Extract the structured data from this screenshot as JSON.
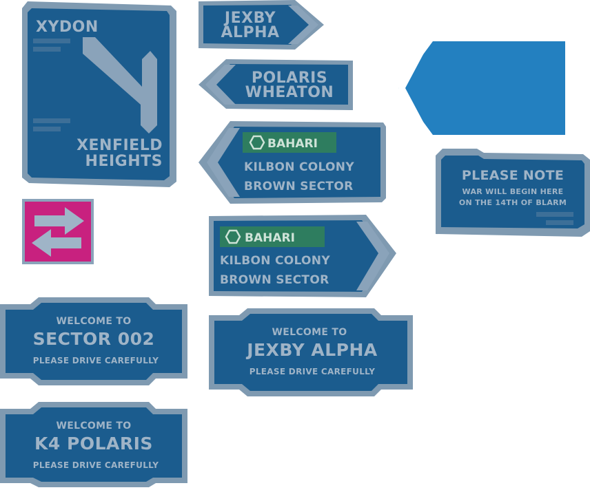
{
  "colors": {
    "sign_fill": "#1b5c8e",
    "sign_border": "#7f9ab1",
    "text": "#9fb4c7",
    "badge": "#2e7d5f",
    "magenta": "#c8217f",
    "bright_blue": "#2380c0"
  },
  "signs": {
    "xydon": {
      "top": "XYDON",
      "bottom_line1": "XENFIELD",
      "bottom_line2": "HEIGHTS"
    },
    "jexby_arrow": {
      "line1": "JEXBY",
      "line2": "ALPHA"
    },
    "polaris_arrow": {
      "line1": "POLARIS",
      "line2": "WHEATON"
    },
    "bahari_left": {
      "badge": "BAHARI",
      "line1": "KILBON COLONY",
      "line2": "BROWN SECTOR"
    },
    "bahari_right": {
      "badge": "BAHARI",
      "line1": "KILBON COLONY",
      "line2": "BROWN SECTOR"
    },
    "please_note": {
      "title": "PLEASE NOTE",
      "line1": "WAR WILL BEGIN HERE",
      "line2": "ON THE 14TH OF BLARM"
    },
    "welcome_sector": {
      "line1": "WELCOME TO",
      "name": "SECTOR 002",
      "line3": "PLEASE DRIVE CAREFULLY"
    },
    "welcome_jexby": {
      "line1": "WELCOME TO",
      "name": "JEXBY ALPHA",
      "line3": "PLEASE DRIVE CAREFULLY"
    },
    "welcome_k4": {
      "line1": "WELCOME TO",
      "name": "K4 POLARIS",
      "line3": "PLEASE DRIVE CAREFULLY"
    }
  }
}
